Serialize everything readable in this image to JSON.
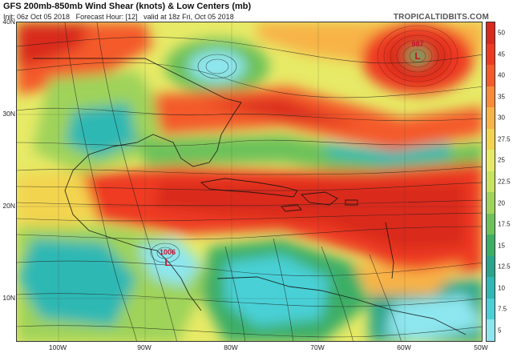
{
  "header": {
    "title": "GFS 200mb-850mb Wind Shear (knots) & Low Centers (mb)",
    "init": "Init: 06z Oct 05 2018",
    "forecast_hour": "Forecast Hour: [12]",
    "valid": "valid at 18z Fri, Oct 05 2018",
    "brand": "TROPICALTIDBITS.COM"
  },
  "map": {
    "latitude_labels": [
      "40N",
      "30N",
      "20N",
      "10N"
    ],
    "longitude_labels": [
      "100W",
      "90W",
      "80W",
      "70W",
      "60W",
      "50W"
    ],
    "low_centers": [
      {
        "pressure": "987",
        "symbol": "L"
      },
      {
        "pressure": "1006",
        "symbol": "L"
      }
    ]
  },
  "legend": {
    "labels": [
      "50",
      "45",
      "40",
      "35",
      "30",
      "27.5",
      "25",
      "22.5",
      "20",
      "17.5",
      "15",
      "12.5",
      "10",
      "7.5",
      "5"
    ],
    "colors": [
      "#d92a1e",
      "#ee3b20",
      "#f45a2a",
      "#f88a3a",
      "#f8b347",
      "#f3d44f",
      "#e7ea66",
      "#c7e35f",
      "#9fd35a",
      "#6dc15a",
      "#3cae66",
      "#2aa58c",
      "#2fb8b4",
      "#4ad0d6",
      "#8ee6ee"
    ]
  }
}
